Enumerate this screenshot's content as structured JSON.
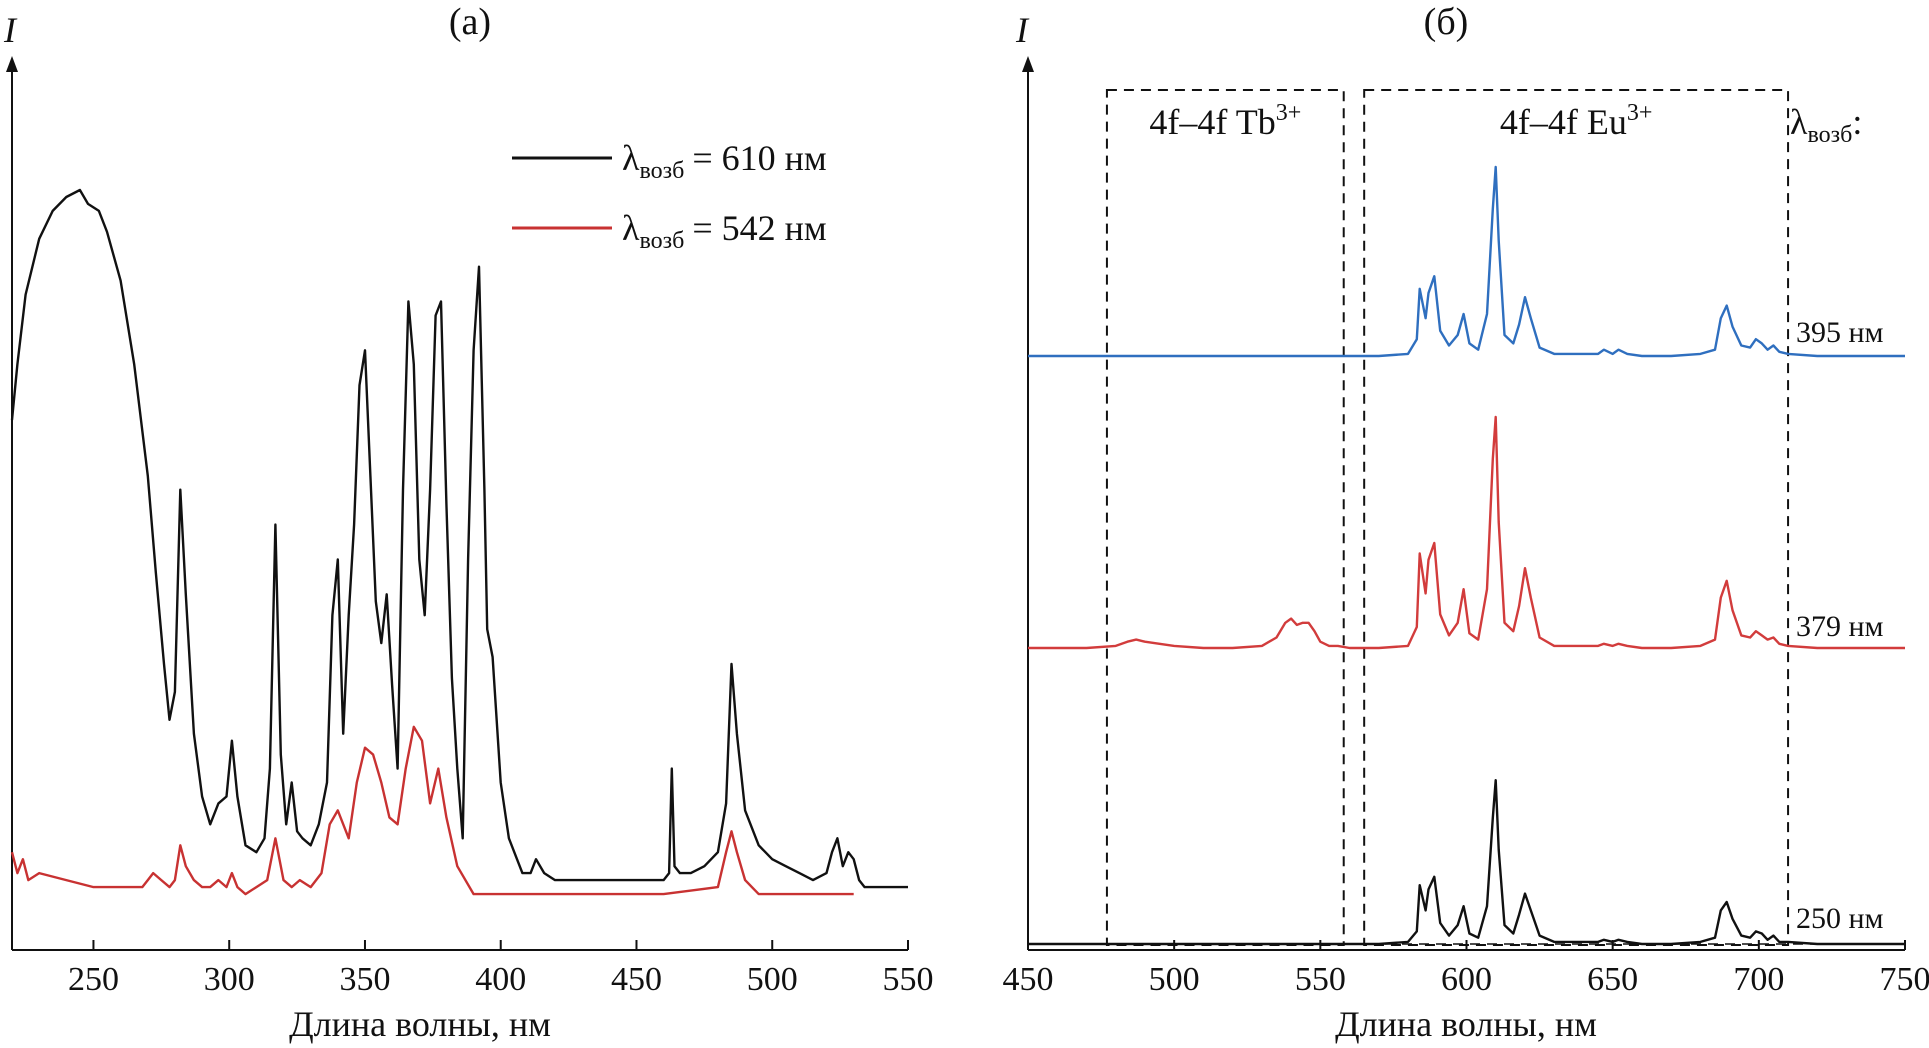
{
  "chart_data": [
    {
      "type": "line",
      "panel_label": "(a)",
      "ylabel": "I",
      "xlabel": "Длина волны, нм",
      "xlim": [
        220,
        550
      ],
      "xticks": [
        "250",
        "300",
        "350",
        "400",
        "450",
        "500",
        "550"
      ],
      "grid": false,
      "legend": {
        "placement": "top-right",
        "entries": [
          {
            "sym": "λ",
            "sub": "возб",
            "rest": "= 610 нм",
            "color": "#111111"
          },
          {
            "sym": "λ",
            "sub": "возб",
            "rest": "= 542 нм",
            "color": "#c83232"
          }
        ]
      },
      "series": [
        {
          "name": "λвозб = 610 нм",
          "color": "#111111",
          "x": [
            220,
            222,
            225,
            230,
            235,
            240,
            245,
            248,
            252,
            255,
            260,
            265,
            270,
            273,
            276,
            278,
            280,
            282,
            284,
            287,
            290,
            293,
            296,
            299,
            301,
            303,
            306,
            310,
            313,
            315,
            317,
            319,
            321,
            323,
            325,
            327,
            330,
            333,
            336,
            338,
            340,
            342,
            344,
            346,
            348,
            350,
            352,
            354,
            356,
            358,
            360,
            362,
            364,
            366,
            368,
            370,
            372,
            374,
            376,
            378,
            380,
            382,
            384,
            386,
            388,
            390,
            392,
            394,
            395,
            397,
            400,
            403,
            406,
            408,
            411,
            413,
            416,
            420,
            430,
            440,
            450,
            455,
            460,
            462,
            463,
            464,
            466,
            470,
            475,
            480,
            483,
            485,
            487,
            490,
            495,
            500,
            505,
            510,
            515,
            520,
            522,
            524,
            526,
            528,
            530,
            532,
            534,
            536,
            540,
            545,
            550
          ],
          "y": [
            70,
            78,
            88,
            96,
            100,
            102,
            103,
            101,
            100,
            97,
            90,
            78,
            62,
            48,
            35,
            27,
            31,
            60,
            45,
            25,
            16,
            12,
            15,
            16,
            24,
            16,
            9,
            8,
            10,
            20,
            55,
            22,
            12,
            18,
            11,
            10,
            9,
            12,
            18,
            42,
            50,
            25,
            42,
            55,
            75,
            80,
            62,
            44,
            38,
            45,
            32,
            20,
            60,
            87,
            78,
            50,
            42,
            60,
            85,
            87,
            58,
            33,
            20,
            10,
            50,
            80,
            92,
            60,
            40,
            36,
            18,
            10,
            7,
            5,
            5,
            7,
            5,
            4,
            4,
            4,
            4,
            4,
            4,
            5,
            20,
            6,
            5,
            5,
            6,
            8,
            15,
            35,
            25,
            14,
            9,
            7,
            6,
            5,
            4,
            5,
            8,
            10,
            6,
            8,
            7,
            4,
            3,
            3,
            3,
            3,
            3
          ]
        },
        {
          "name": "λвозб = 542 нм",
          "color": "#c83232",
          "x": [
            220,
            222,
            224,
            226,
            230,
            240,
            250,
            260,
            265,
            268,
            270,
            272,
            275,
            278,
            280,
            282,
            284,
            287,
            290,
            293,
            296,
            299,
            301,
            303,
            306,
            310,
            314,
            317,
            320,
            323,
            326,
            330,
            334,
            337,
            340,
            344,
            347,
            350,
            353,
            356,
            359,
            362,
            365,
            368,
            371,
            374,
            377,
            380,
            384,
            390,
            400,
            420,
            440,
            460,
            480,
            483,
            485,
            487,
            490,
            495,
            500,
            510,
            520,
            530
          ],
          "y": [
            8,
            5,
            7,
            4,
            5,
            4,
            3,
            3,
            3,
            3,
            4,
            5,
            4,
            3,
            4,
            9,
            6,
            4,
            3,
            3,
            4,
            3,
            5,
            3,
            2,
            3,
            4,
            10,
            4,
            3,
            4,
            3,
            5,
            12,
            14,
            10,
            18,
            23,
            22,
            18,
            13,
            12,
            20,
            26,
            24,
            15,
            20,
            13,
            6,
            2,
            2,
            2,
            2,
            2,
            3,
            8,
            11,
            8,
            4,
            2,
            2,
            2,
            2,
            2
          ]
        }
      ]
    },
    {
      "type": "line",
      "panel_label": "(б)",
      "ylabel": "I",
      "xlabel": "Длина волны, нм",
      "xlim": [
        450,
        750
      ],
      "xticks": [
        "450",
        "500",
        "550",
        "600",
        "650",
        "700",
        "750"
      ],
      "grid": false,
      "legend_title_sym": "λ",
      "legend_title_sub": "возб",
      "legend_title_rest": ":",
      "regions": [
        {
          "range": [
            477,
            558
          ],
          "label_pre": "4f–4f Tb",
          "label_sup": "3+"
        },
        {
          "range": [
            565,
            710
          ],
          "label_pre": "4f–4f Eu",
          "label_sup": "3+"
        }
      ],
      "baseline_note": "dashed zero line",
      "series": [
        {
          "name": "395 нм",
          "label": "395 нм",
          "color": "#2f6fbf",
          "offset": 100,
          "x": [
            450,
            500,
            550,
            570,
            580,
            583,
            584,
            586,
            587,
            589,
            591,
            594,
            597,
            599,
            601,
            604,
            607,
            609,
            610,
            611,
            613,
            616,
            618,
            620,
            622,
            625,
            630,
            640,
            645,
            647,
            650,
            652,
            655,
            660,
            670,
            680,
            685,
            687,
            689,
            691,
            694,
            697,
            699,
            701,
            703,
            705,
            707,
            710,
            720,
            750
          ],
          "y": [
            0,
            0,
            0,
            0,
            1,
            8,
            32,
            18,
            30,
            38,
            12,
            5,
            10,
            20,
            6,
            3,
            20,
            70,
            90,
            55,
            10,
            6,
            15,
            28,
            18,
            4,
            1,
            1,
            1,
            3,
            1,
            3,
            1,
            0,
            0,
            1,
            3,
            18,
            24,
            14,
            5,
            4,
            8,
            6,
            3,
            5,
            2,
            1,
            0,
            0
          ]
        },
        {
          "name": "379 нм",
          "label": "379 нм",
          "color": "#d23c3c",
          "offset": 0,
          "x": [
            450,
            470,
            480,
            484,
            487,
            490,
            495,
            500,
            510,
            520,
            530,
            535,
            538,
            540,
            542,
            544,
            546,
            548,
            550,
            553,
            556,
            560,
            570,
            580,
            583,
            584,
            586,
            587,
            589,
            591,
            594,
            597,
            599,
            601,
            604,
            607,
            609,
            610,
            611,
            613,
            616,
            618,
            620,
            622,
            625,
            630,
            640,
            645,
            647,
            650,
            652,
            655,
            660,
            670,
            680,
            685,
            687,
            689,
            691,
            694,
            697,
            699,
            701,
            703,
            705,
            707,
            710,
            720,
            750
          ],
          "y": [
            0,
            0,
            1,
            3,
            4,
            3,
            2,
            1,
            0,
            0,
            1,
            5,
            12,
            14,
            11,
            12,
            12,
            8,
            3,
            1,
            1,
            0,
            0,
            1,
            10,
            45,
            26,
            42,
            50,
            16,
            6,
            12,
            28,
            7,
            4,
            28,
            90,
            110,
            60,
            12,
            8,
            20,
            38,
            24,
            5,
            1,
            1,
            1,
            2,
            1,
            2,
            1,
            0,
            0,
            1,
            4,
            24,
            32,
            18,
            6,
            5,
            8,
            6,
            4,
            5,
            2,
            1,
            0,
            0
          ]
        },
        {
          "name": "250 нм",
          "label": "250 нм",
          "color": "#111111",
          "offset": -100,
          "x": [
            450,
            500,
            550,
            570,
            580,
            583,
            584,
            586,
            587,
            589,
            591,
            594,
            597,
            599,
            601,
            604,
            607,
            609,
            610,
            611,
            613,
            616,
            618,
            620,
            622,
            625,
            630,
            640,
            645,
            647,
            650,
            652,
            655,
            660,
            670,
            680,
            685,
            687,
            689,
            691,
            694,
            697,
            699,
            701,
            703,
            705,
            707,
            710,
            720,
            750
          ],
          "y": [
            0,
            0,
            0,
            0,
            1,
            6,
            28,
            16,
            26,
            32,
            10,
            4,
            9,
            18,
            5,
            3,
            18,
            60,
            78,
            45,
            9,
            5,
            14,
            24,
            16,
            4,
            1,
            1,
            1,
            2,
            1,
            2,
            1,
            0,
            0,
            1,
            3,
            16,
            20,
            12,
            4,
            3,
            6,
            5,
            2,
            4,
            1,
            1,
            0,
            0
          ]
        }
      ]
    }
  ]
}
